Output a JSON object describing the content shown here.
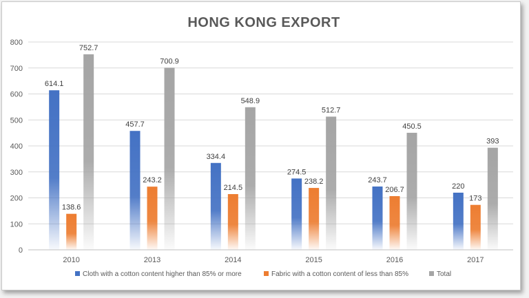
{
  "chart_data": {
    "type": "bar",
    "title": "HONG KONG EXPORT",
    "categories": [
      "2010",
      "2013",
      "2014",
      "2015",
      "2016",
      "2017"
    ],
    "series": [
      {
        "name": "Cloth with a cotton content higher than 85% or more",
        "color": "#4472c4",
        "values": [
          614.1,
          457.7,
          334.4,
          274.5,
          243.7,
          220
        ],
        "labels": [
          "614.1",
          "457.7",
          "334.4",
          "274.5",
          "243.7",
          "220"
        ]
      },
      {
        "name": "Fabric with a cotton content of less than 85%",
        "color": "#ed7d31",
        "values": [
          138.6,
          243.2,
          214.5,
          238.2,
          206.7,
          173
        ],
        "labels": [
          "138.6",
          "243.2",
          "214.5",
          "238.2",
          "206.7",
          "173"
        ]
      },
      {
        "name": "Total",
        "color": "#a5a5a5",
        "values": [
          752.7,
          700.9,
          548.9,
          512.7,
          450.5,
          393
        ],
        "labels": [
          "752.7",
          "700.9",
          "548.9",
          "512.7",
          "450.5",
          "393"
        ]
      }
    ],
    "yticks": [
      "0",
      "100",
      "200",
      "300",
      "400",
      "500",
      "600",
      "700",
      "800"
    ],
    "ylim": [
      0,
      800
    ],
    "grid": true,
    "legend": "bottom"
  }
}
